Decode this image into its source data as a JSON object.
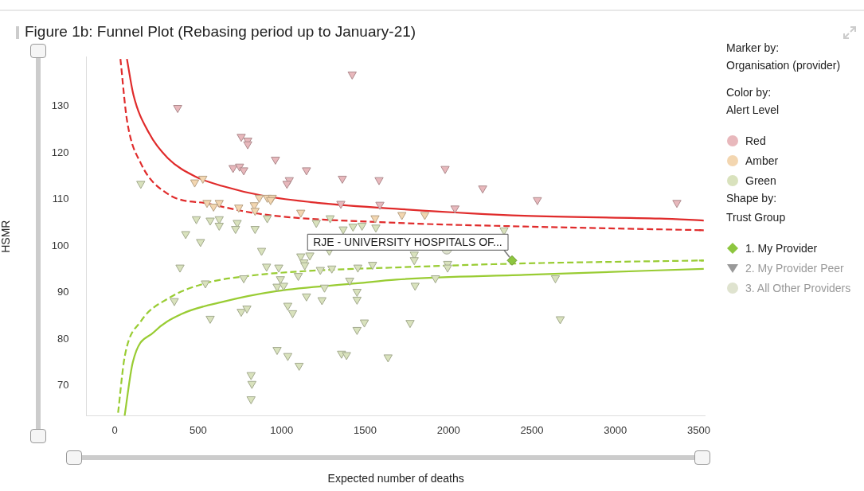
{
  "chart_data": {
    "type": "scatter",
    "title": "Figure 1b: Funnel Plot (Rebasing period up to January-21)",
    "xlabel": "Expected number of deaths",
    "ylabel": "HSMR",
    "xlim": [
      -170,
      3540
    ],
    "xticks": [
      0,
      500,
      1000,
      1500,
      2000,
      2500,
      3000,
      3500
    ],
    "ylim": [
      63.5,
      140.6
    ],
    "yticks": [
      70,
      80,
      90,
      100,
      110,
      120,
      130
    ],
    "grid": false,
    "legend": "right",
    "annotations": [
      "Marker by:",
      "Organisation (provider)",
      "Color by:",
      "Alert Level",
      "Shape by:",
      "Trust Group",
      "2. My Provider Peer",
      {
        "text": "RJE - UNIVERSITY HOSPITALS OF...",
        "x": 2381,
        "y": 96.9
      }
    ],
    "series": [
      {
        "name": "Red",
        "color": "#e8b8bc",
        "marker": "triangle",
        "x": [
          1423,
          377,
          758,
          797,
          797,
          709,
          748,
          773,
          963,
          1149,
          1046,
          1032,
          1364,
          1584,
          1355,
          1589,
          1980,
          2205,
          2533,
          3369,
          2039
        ],
        "values": [
          136.9,
          129.7,
          123.5,
          122.7,
          121.9,
          116.8,
          117.1,
          116.3,
          118.6,
          116.3,
          114.2,
          113.4,
          114.5,
          114.2,
          109.1,
          108.9,
          116.6,
          112.4,
          109.9,
          109.3,
          108.1
        ]
      },
      {
        "name": "Amber",
        "color": "#f3d6b0",
        "marker": "triangle",
        "x": [
          479,
          528,
          553,
          626,
          592,
          743,
          836,
          841,
          866,
          914,
          944,
          934,
          1115,
          1560,
          1721,
          1858
        ],
        "values": [
          113.7,
          114.5,
          109.3,
          109.3,
          108.5,
          108.3,
          108.8,
          107.6,
          110.4,
          110.4,
          110.4,
          109.9,
          107.2,
          106.0,
          106.7,
          106.7
        ]
      },
      {
        "name": "Green",
        "color": "#d9e2bd",
        "marker": "triangle",
        "x": [
          156,
          489,
          572,
          626,
          626,
          734,
          724,
          841,
          914,
          1208,
          1291,
          425,
          514,
          1369,
          1428,
          1482,
          1565,
          2333,
          391,
          357,
          543,
          572,
          773,
          758,
          792,
          880,
          910,
          983,
          993,
          973,
          1012,
          1115,
          1169,
          1134,
          1139,
          1100,
          1037,
          1066,
          1149,
          1232,
          1257,
          1242,
          1286,
          1301,
          1408,
          1452,
          1452,
          1457,
          1545,
          1496,
          1452,
          973,
          1037,
          1105,
          1359,
          1389,
          1638,
          817,
          822,
          817,
          1795,
          1795,
          1995,
          1995,
          1922,
          1800,
          2641,
          1770,
          2670
        ],
        "values": [
          113.4,
          105.8,
          105.5,
          105.8,
          104.4,
          105.0,
          103.7,
          103.7,
          106.0,
          105.0,
          106.0,
          102.6,
          100.9,
          103.6,
          104.2,
          104.4,
          104.0,
          103.4,
          95.4,
          88.2,
          92.0,
          84.4,
          93.1,
          85.9,
          86.6,
          99.0,
          95.6,
          95.4,
          92.9,
          91.3,
          91.5,
          97.8,
          98.0,
          96.5,
          95.9,
          93.6,
          87.2,
          85.6,
          89.2,
          94.9,
          91.1,
          88.4,
          99.0,
          95.2,
          92.6,
          90.2,
          88.5,
          95.4,
          96.0,
          83.6,
          82.0,
          77.7,
          76.4,
          74.3,
          76.9,
          76.6,
          76.1,
          72.3,
          70.4,
          67.1,
          98.2,
          97.0,
          96.2,
          95.4,
          93.1,
          91.5,
          93.1,
          83.5,
          84.3
        ]
      },
      {
        "name": "1. My Provider",
        "color": "#8dc63f",
        "marker": "diamond",
        "x": [
          2381
        ],
        "values": [
          96.9
        ]
      },
      {
        "name": "3. All Other Providers",
        "color": "#dfe3cf",
        "marker": "circle",
        "x": [
          1990
        ],
        "values": [
          99.3
        ]
      },
      {
        "type": "line",
        "color": "#e02b2b",
        "line_style": "solid",
        "x": [
          73,
          112,
          205,
          318,
          479,
          645,
          890,
          1213,
          1687,
          2455,
          3267,
          3530
        ],
        "values": [
          140.2,
          132.5,
          124.3,
          118.9,
          115.0,
          112.9,
          110.8,
          109.3,
          108.0,
          106.5,
          105.9,
          105.5
        ]
      },
      {
        "type": "line",
        "color": "#e02b2b",
        "line_style": "dashed",
        "x": [
          34,
          73,
          156,
          318,
          562,
          890,
          1687,
          2455,
          3530
        ],
        "values": [
          140.2,
          127.1,
          117.8,
          111.2,
          109.1,
          106.8,
          105.0,
          104.2,
          103.4
        ]
      },
      {
        "type": "line",
        "color": "#99cc33",
        "line_style": "dashed",
        "x": [
          20,
          59,
          156,
          318,
          543,
          807,
          1134,
          1687,
          2372,
          3530
        ],
        "values": [
          64.2,
          76.1,
          83.8,
          88.7,
          92.0,
          93.6,
          94.6,
          95.4,
          96.2,
          96.9
        ]
      },
      {
        "type": "line",
        "color": "#99cc33",
        "line_style": "solid",
        "x": [
          59,
          108,
          235,
          401,
          645,
          968,
          1457,
          1687,
          2455,
          3530
        ],
        "values": [
          63.5,
          75.0,
          81.5,
          85.4,
          88.0,
          90.3,
          92.0,
          92.8,
          93.8,
          95.1
        ]
      }
    ]
  }
}
